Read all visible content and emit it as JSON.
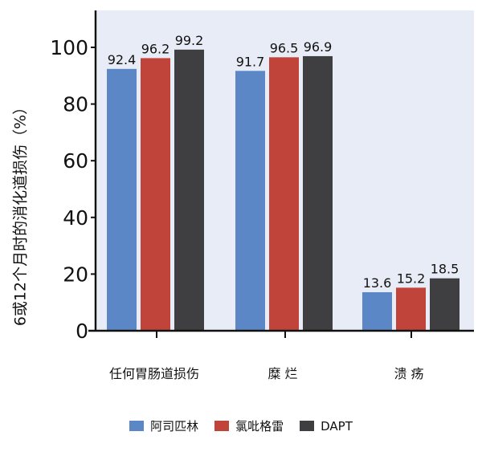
{
  "chart_data": {
    "type": "bar",
    "title": "",
    "xlabel": "",
    "ylabel": "6或12个月时的消化道损伤（%）",
    "categories": [
      "任何胃肠道损伤",
      "糜 烂",
      "溃 疡"
    ],
    "series": [
      {
        "name": "阿司匹林",
        "color": "#5b87c6",
        "values": [
          92.4,
          91.7,
          13.6
        ]
      },
      {
        "name": "氯吡格雷",
        "color": "#c1443a",
        "values": [
          96.2,
          96.5,
          15.2
        ]
      },
      {
        "name": "DAPT",
        "color": "#3f3f42",
        "values": [
          99.2,
          96.9,
          18.5
        ]
      }
    ],
    "data_labels": [
      [
        "92.4",
        "91.7",
        "13.6"
      ],
      [
        "96.2",
        "96.5",
        "15.2"
      ],
      [
        "99.2",
        "96.9",
        "18.5"
      ]
    ],
    "yticks": [
      0,
      20,
      40,
      60,
      80,
      100
    ],
    "ytick_labels": [
      "0",
      "20",
      "40",
      "60",
      "80",
      "100"
    ],
    "ylim": [
      0,
      110
    ],
    "grid": false,
    "legend_position": "bottom",
    "plot_background": "#e8ecf6"
  },
  "legend": {
    "items": [
      {
        "label": "阿司匹林",
        "color": "#5b87c6"
      },
      {
        "label": "氯吡格雷",
        "color": "#c1443a"
      },
      {
        "label": "DAPT",
        "color": "#3f3f42"
      }
    ]
  }
}
